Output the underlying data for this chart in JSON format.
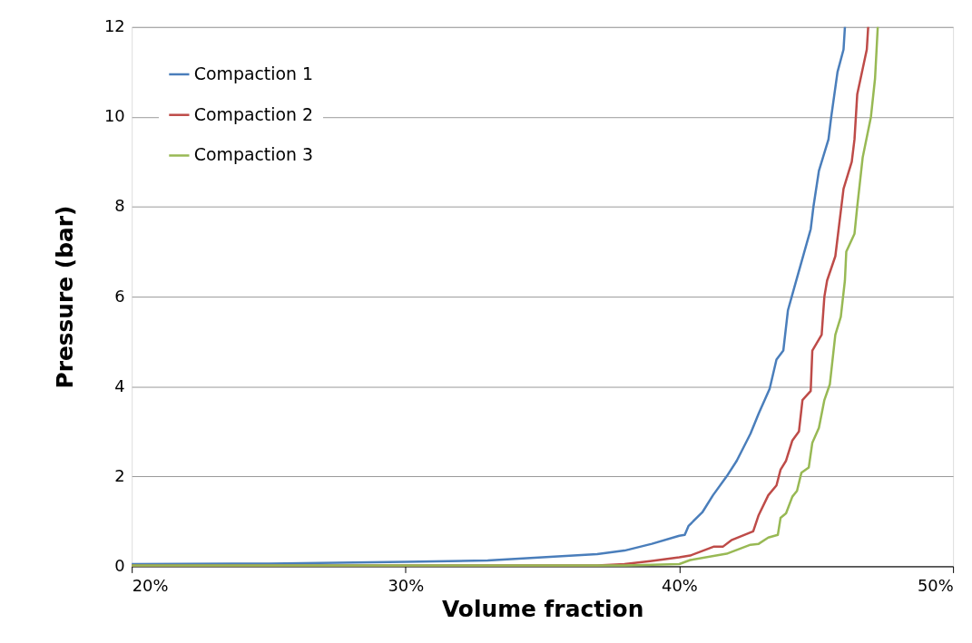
{
  "chart_data": {
    "type": "line",
    "xlabel": "Volume fraction",
    "ylabel": "Pressure (bar)",
    "xlim": [
      20,
      50
    ],
    "xticks": [
      {
        "value": 20,
        "label": "20%"
      },
      {
        "value": 30,
        "label": "30%"
      },
      {
        "value": 40,
        "label": "40%"
      },
      {
        "value": 50,
        "label": "50%"
      }
    ],
    "ylim": [
      0,
      12
    ],
    "yticks": [
      0,
      2,
      4,
      6,
      8,
      10,
      12
    ],
    "grid": "y",
    "legend": "top left",
    "marker": "none",
    "line_style": "solid",
    "series": [
      {
        "name": "Compaction 1",
        "color": "#4a7ebb",
        "x": [
          20,
          25,
          30,
          33,
          35,
          37,
          38,
          39,
          40,
          40.2,
          40.34,
          40.84,
          41.23,
          41.73,
          42.1,
          42.6,
          42.9,
          43.3,
          43.55,
          43.8,
          43.97,
          44.2,
          44.8,
          44.9,
          45.1,
          45.45,
          45.55,
          45.78,
          46.0,
          46.05
        ],
        "values": [
          0.05,
          0.06,
          0.1,
          0.13,
          0.2,
          0.27,
          0.35,
          0.5,
          0.68,
          0.7,
          0.9,
          1.2,
          1.58,
          2.0,
          2.35,
          2.95,
          3.4,
          3.95,
          4.6,
          4.8,
          5.7,
          6.2,
          7.5,
          8.0,
          8.8,
          9.5,
          10.0,
          11.0,
          11.5,
          12
        ]
      },
      {
        "name": "Compaction 2",
        "color": "#be4b48",
        "x": [
          20,
          30,
          37,
          38,
          39,
          40,
          40.4,
          41.27,
          41.6,
          41.9,
          42.7,
          42.9,
          43.25,
          43.55,
          43.7,
          43.9,
          44.13,
          44.37,
          44.5,
          44.8,
          44.86,
          45.2,
          45.3,
          45.4,
          45.7,
          45.9,
          46.0,
          46.3,
          46.4,
          46.5,
          46.85,
          46.9
        ],
        "values": [
          0.02,
          0.02,
          0.02,
          0.05,
          0.12,
          0.2,
          0.24,
          0.44,
          0.44,
          0.58,
          0.78,
          1.14,
          1.58,
          1.8,
          2.15,
          2.35,
          2.8,
          3.0,
          3.7,
          3.9,
          4.8,
          5.15,
          6.0,
          6.36,
          6.9,
          7.9,
          8.4,
          9.0,
          9.5,
          10.5,
          11.5,
          12
        ]
      },
      {
        "name": "Compaction 3",
        "color": "#98b954",
        "x": [
          20,
          30,
          38,
          40,
          40.4,
          41.73,
          42.6,
          42.9,
          43.25,
          43.6,
          43.7,
          43.9,
          44.13,
          44.3,
          44.46,
          44.73,
          44.86,
          45.1,
          45.3,
          45.5,
          45.7,
          45.9,
          46.05,
          46.1,
          46.4,
          46.5,
          46.7,
          47.0,
          47.15,
          47.25
        ],
        "values": [
          0.02,
          0.02,
          0.02,
          0.05,
          0.14,
          0.28,
          0.48,
          0.5,
          0.64,
          0.7,
          1.08,
          1.18,
          1.55,
          1.68,
          2.08,
          2.2,
          2.75,
          3.08,
          3.7,
          4.05,
          5.15,
          5.55,
          6.36,
          7.0,
          7.4,
          8.0,
          9.1,
          10.0,
          10.85,
          12
        ]
      }
    ]
  }
}
